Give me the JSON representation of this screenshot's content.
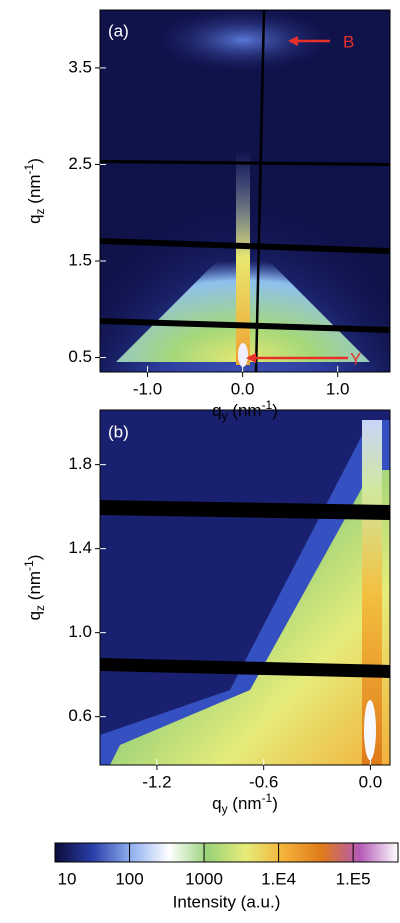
{
  "chart_data": [
    {
      "type": "heatmap",
      "panel_label": "(a)",
      "annotations": [
        "B",
        "Y"
      ],
      "annotation_color": "#e8302a",
      "x_label": [
        "q",
        "y",
        " (nm",
        "-1",
        ")"
      ],
      "y_label": [
        "q",
        "z",
        " (nm",
        "-1",
        ")"
      ],
      "xlim": [
        -1.5,
        1.55
      ],
      "ylim": [
        0.35,
        4.1
      ],
      "xticks": [
        {
          "value": -1,
          "label": "-1.0"
        },
        {
          "value": 0,
          "label": "0.0"
        },
        {
          "value": 1,
          "label": "1.0"
        }
      ],
      "yticks": [
        0.5,
        1.5,
        2.5,
        3.5
      ]
    },
    {
      "type": "heatmap",
      "panel_label": "(b)",
      "x_label": [
        "q",
        "y",
        " (nm",
        "-1",
        ")"
      ],
      "y_label": [
        "q",
        "z",
        " (nm",
        "-1",
        ")"
      ],
      "xlim": [
        -1.52,
        0.11
      ],
      "ylim": [
        0.37,
        2.06
      ],
      "xticks": [
        -1.2,
        -0.6,
        {
          "value": 0,
          "label": "0.0"
        }
      ],
      "yticks": [
        0.6,
        {
          "value": 1,
          "label": "1.0"
        },
        1.4,
        1.8
      ]
    },
    {
      "type": "colorbar",
      "label": "Intensity (a.u.)",
      "log_scale": true,
      "zlim": [
        10,
        400000
      ],
      "ticks": [
        10,
        100,
        1000,
        {
          "value": 10000,
          "label": "1.E4"
        },
        {
          "value": 100000,
          "label": "1.E5"
        }
      ],
      "colormap": [
        "#0b0b3a",
        "#2a3fa8",
        "#8fb0f0",
        "#ffffff",
        "#9ad27a",
        "#e6ec7a",
        "#f3b23a",
        "#e07a1a",
        "#b45ab8",
        "#ffffff"
      ]
    }
  ]
}
